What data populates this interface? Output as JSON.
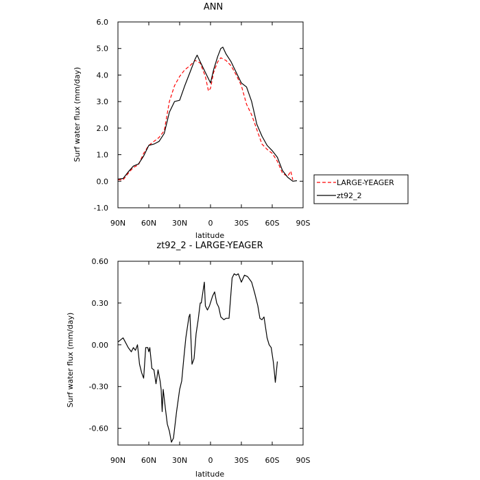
{
  "chart_data": [
    {
      "type": "line",
      "title": "ANN",
      "xlabel": "latitude",
      "ylabel": "Surf water flux (mm/day)",
      "xlim": [
        90,
        -90
      ],
      "ylim": [
        -1.0,
        6.0
      ],
      "x_ticks": [
        {
          "value": 90,
          "label": "90N"
        },
        {
          "value": 60,
          "label": "60N"
        },
        {
          "value": 30,
          "label": "30N"
        },
        {
          "value": 0,
          "label": "0"
        },
        {
          "value": -30,
          "label": "30S"
        },
        {
          "value": -60,
          "label": "60S"
        },
        {
          "value": -90,
          "label": "90S"
        }
      ],
      "y_ticks": [
        {
          "value": 6.0,
          "label": "6.0"
        },
        {
          "value": 5.0,
          "label": "5.0"
        },
        {
          "value": 4.0,
          "label": "4.0"
        },
        {
          "value": 3.0,
          "label": "3.0"
        },
        {
          "value": 2.0,
          "label": "2.0"
        },
        {
          "value": 1.0,
          "label": "1.0"
        },
        {
          "value": 0.0,
          "label": "0.0"
        },
        {
          "value": -1.0,
          "label": "-1.0"
        }
      ],
      "grid": false,
      "legend_position": "right-outside",
      "series": [
        {
          "name": "LARGE-YEAGER",
          "color": "#ff0000",
          "style": "dashed",
          "points": [
            [
              90,
              0.06
            ],
            [
              85,
              0.05
            ],
            [
              80,
              0.3
            ],
            [
              75,
              0.52
            ],
            [
              70,
              0.62
            ],
            [
              65,
              1.05
            ],
            [
              60,
              1.35
            ],
            [
              55,
              1.5
            ],
            [
              50,
              1.65
            ],
            [
              45,
              1.9
            ],
            [
              40,
              3.0
            ],
            [
              35,
              3.6
            ],
            [
              30,
              3.95
            ],
            [
              25,
              4.2
            ],
            [
              20,
              4.35
            ],
            [
              15,
              4.55
            ],
            [
              10,
              4.45
            ],
            [
              5,
              3.95
            ],
            [
              2,
              3.4
            ],
            [
              0,
              3.5
            ],
            [
              -3,
              4.1
            ],
            [
              -7,
              4.5
            ],
            [
              -10,
              4.65
            ],
            [
              -15,
              4.55
            ],
            [
              -20,
              4.35
            ],
            [
              -25,
              4.0
            ],
            [
              -30,
              3.6
            ],
            [
              -35,
              2.9
            ],
            [
              -40,
              2.5
            ],
            [
              -45,
              1.95
            ],
            [
              -50,
              1.4
            ],
            [
              -55,
              1.2
            ],
            [
              -60,
              1.05
            ],
            [
              -65,
              0.75
            ],
            [
              -70,
              0.3
            ],
            [
              -75,
              0.18
            ],
            [
              -78,
              0.38
            ],
            [
              -80,
              0.05
            ]
          ]
        },
        {
          "name": "zt92_2",
          "color": "#000000",
          "style": "solid",
          "points": [
            [
              90,
              0.08
            ],
            [
              85,
              0.1
            ],
            [
              80,
              0.35
            ],
            [
              75,
              0.57
            ],
            [
              70,
              0.65
            ],
            [
              65,
              0.95
            ],
            [
              60,
              1.35
            ],
            [
              55,
              1.4
            ],
            [
              50,
              1.5
            ],
            [
              45,
              1.8
            ],
            [
              40,
              2.6
            ],
            [
              35,
              3.0
            ],
            [
              30,
              3.05
            ],
            [
              25,
              3.6
            ],
            [
              20,
              4.1
            ],
            [
              15,
              4.6
            ],
            [
              13,
              4.75
            ],
            [
              10,
              4.5
            ],
            [
              5,
              4.1
            ],
            [
              0,
              3.7
            ],
            [
              -3,
              4.2
            ],
            [
              -7,
              4.7
            ],
            [
              -10,
              5.0
            ],
            [
              -12,
              5.05
            ],
            [
              -15,
              4.8
            ],
            [
              -20,
              4.5
            ],
            [
              -25,
              4.1
            ],
            [
              -30,
              3.7
            ],
            [
              -35,
              3.55
            ],
            [
              -40,
              3.0
            ],
            [
              -45,
              2.15
            ],
            [
              -50,
              1.7
            ],
            [
              -55,
              1.35
            ],
            [
              -60,
              1.15
            ],
            [
              -65,
              0.9
            ],
            [
              -70,
              0.4
            ],
            [
              -75,
              0.15
            ],
            [
              -80,
              0.0
            ],
            [
              -84,
              0.02
            ]
          ]
        }
      ]
    },
    {
      "type": "line",
      "title": "zt92_2 - LARGE-YEAGER",
      "xlabel": "latitude",
      "ylabel": "Surf water flux (mm/day)",
      "xlim": [
        90,
        -90
      ],
      "ylim": [
        -0.72,
        0.6
      ],
      "x_ticks": [
        {
          "value": 90,
          "label": "90N"
        },
        {
          "value": 60,
          "label": "60N"
        },
        {
          "value": 30,
          "label": "30N"
        },
        {
          "value": 0,
          "label": "0"
        },
        {
          "value": -30,
          "label": "30S"
        },
        {
          "value": -60,
          "label": "60S"
        },
        {
          "value": -90,
          "label": "90S"
        }
      ],
      "y_ticks": [
        {
          "value": 0.6,
          "label": "0.60"
        },
        {
          "value": 0.3,
          "label": "0.30"
        },
        {
          "value": 0.0,
          "label": "0.00"
        },
        {
          "value": -0.3,
          "label": "-0.30"
        },
        {
          "value": -0.6,
          "label": "-0.60"
        }
      ],
      "grid": false,
      "series": [
        {
          "color": "#000000",
          "style": "solid",
          "points": [
            [
              90,
              0.02
            ],
            [
              85,
              0.05
            ],
            [
              80,
              -0.02
            ],
            [
              77,
              -0.05
            ],
            [
              75,
              -0.02
            ],
            [
              73,
              -0.04
            ],
            [
              71,
              0.0
            ],
            [
              69,
              -0.14
            ],
            [
              67,
              -0.2
            ],
            [
              65,
              -0.24
            ],
            [
              63,
              -0.02
            ],
            [
              61,
              -0.02
            ],
            [
              60,
              -0.05
            ],
            [
              59,
              -0.02
            ],
            [
              57,
              -0.17
            ],
            [
              55,
              -0.18
            ],
            [
              53,
              -0.28
            ],
            [
              51,
              -0.18
            ],
            [
              49,
              -0.26
            ],
            [
              48,
              -0.32
            ],
            [
              47,
              -0.48
            ],
            [
              46,
              -0.32
            ],
            [
              44,
              -0.45
            ],
            [
              42,
              -0.57
            ],
            [
              40,
              -0.62
            ],
            [
              38,
              -0.7
            ],
            [
              36,
              -0.67
            ],
            [
              33,
              -0.48
            ],
            [
              30,
              -0.32
            ],
            [
              28,
              -0.26
            ],
            [
              26,
              -0.1
            ],
            [
              24,
              0.05
            ],
            [
              21,
              0.2
            ],
            [
              20,
              0.22
            ],
            [
              18,
              -0.14
            ],
            [
              16,
              -0.1
            ],
            [
              14,
              0.08
            ],
            [
              12,
              0.18
            ],
            [
              10,
              0.3
            ],
            [
              9,
              0.3
            ],
            [
              8,
              0.35
            ],
            [
              7,
              0.4
            ],
            [
              6,
              0.45
            ],
            [
              5,
              0.28
            ],
            [
              3,
              0.25
            ],
            [
              1,
              0.28
            ],
            [
              -2,
              0.35
            ],
            [
              -4,
              0.38
            ],
            [
              -6,
              0.3
            ],
            [
              -8,
              0.27
            ],
            [
              -10,
              0.2
            ],
            [
              -13,
              0.18
            ],
            [
              -15,
              0.19
            ],
            [
              -18,
              0.19
            ],
            [
              -21,
              0.48
            ],
            [
              -23,
              0.51
            ],
            [
              -25,
              0.5
            ],
            [
              -27,
              0.51
            ],
            [
              -30,
              0.45
            ],
            [
              -33,
              0.5
            ],
            [
              -36,
              0.49
            ],
            [
              -38,
              0.47
            ],
            [
              -40,
              0.45
            ],
            [
              -43,
              0.37
            ],
            [
              -46,
              0.28
            ],
            [
              -48,
              0.19
            ],
            [
              -50,
              0.18
            ],
            [
              -52,
              0.2
            ],
            [
              -55,
              0.05
            ],
            [
              -57,
              0.0
            ],
            [
              -59,
              -0.02
            ],
            [
              -61,
              -0.12
            ],
            [
              -62,
              -0.19
            ],
            [
              -63,
              -0.27
            ],
            [
              -65,
              -0.12
            ]
          ]
        }
      ]
    }
  ]
}
